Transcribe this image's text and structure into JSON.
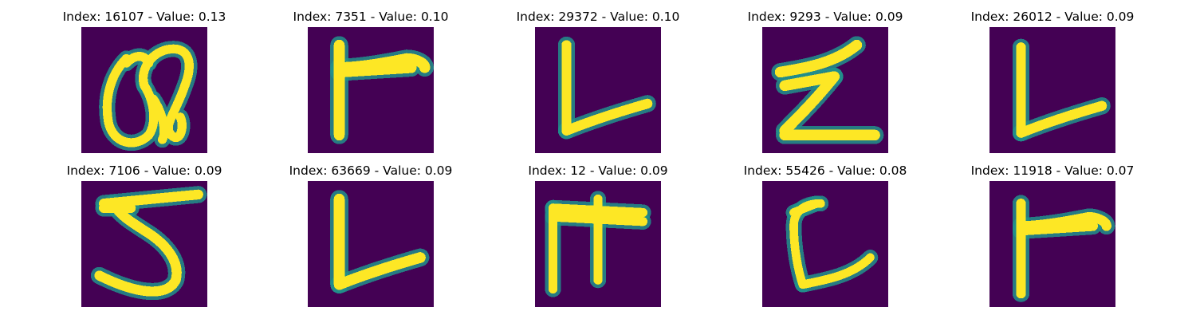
{
  "colors": {
    "background": "#440154",
    "mid": "#21918c",
    "foreground": "#fde725",
    "page": "#ffffff"
  },
  "images": [
    {
      "title": "Index: 16107 - Value: 0.13",
      "glyph": "Q"
    },
    {
      "title": "Index: 7351 - Value: 0.10",
      "glyph": "r"
    },
    {
      "title": "Index: 29372 - Value: 0.10",
      "glyph": "L"
    },
    {
      "title": "Index: 9293 - Value: 0.09",
      "glyph": "Z"
    },
    {
      "title": "Index: 26012 - Value: 0.09",
      "glyph": "L"
    },
    {
      "title": "Index: 7106 - Value: 0.09",
      "glyph": "5"
    },
    {
      "title": "Index: 63669 - Value: 0.09",
      "glyph": "L"
    },
    {
      "title": "Index: 12 - Value: 0.09",
      "glyph": "F"
    },
    {
      "title": "Index: 55426 - Value: 0.08",
      "glyph": "C"
    },
    {
      "title": "Index: 11918 - Value: 0.07",
      "glyph": "r"
    }
  ]
}
